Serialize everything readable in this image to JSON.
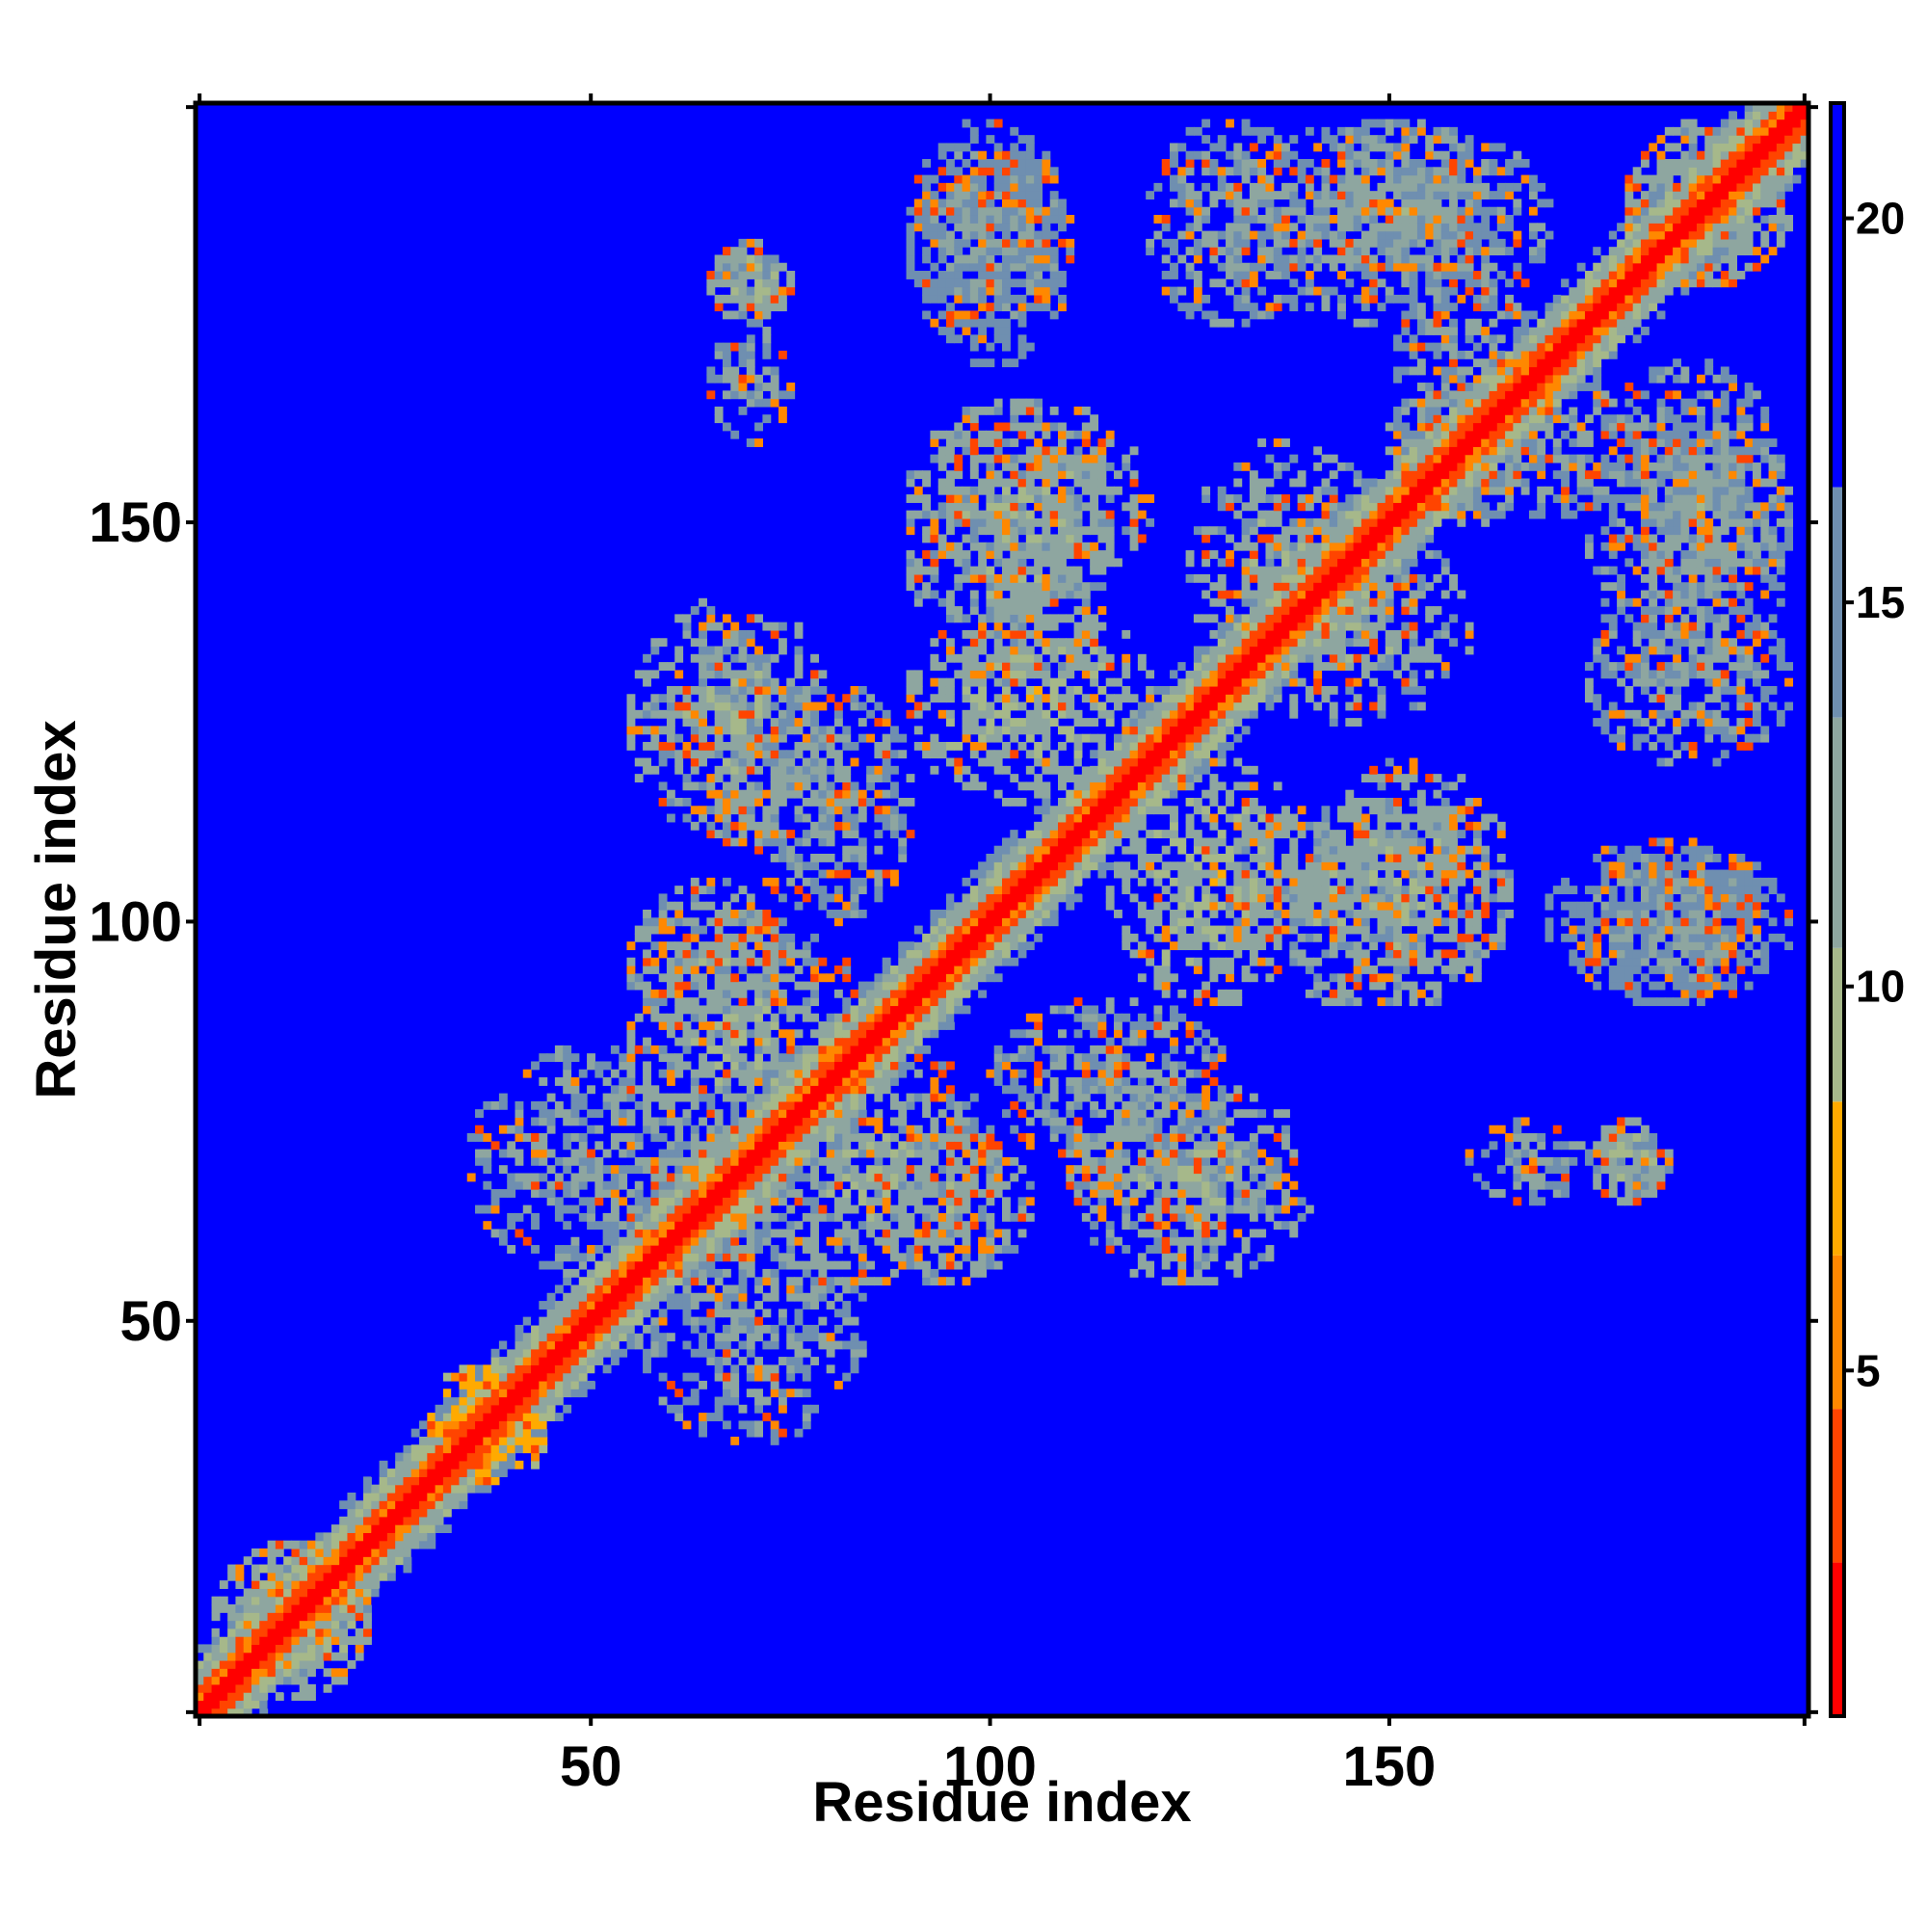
{
  "chart_data": {
    "type": "heatmap",
    "title": "",
    "xlabel": "Residue index",
    "ylabel": "Residue index",
    "x_range": [
      1,
      202
    ],
    "y_range": [
      1,
      202
    ],
    "x_ticks": [
      50,
      100,
      150
    ],
    "y_ticks": [
      50,
      100,
      150
    ],
    "colorbar": {
      "range": [
        0.5,
        21.5
      ],
      "ticks": [
        5,
        10,
        15,
        20
      ],
      "colors": [
        "#ff0000",
        "#ff4400",
        "#ff8800",
        "#ffaa00",
        "#a6b88a",
        "#8ea6a0",
        "#6f8fb0",
        "#0000ff"
      ],
      "color_breaks": [
        0.5,
        2.5,
        4.5,
        6.5,
        8.5,
        10.5,
        13.5,
        16.5,
        21.5
      ]
    },
    "background_value": 21,
    "diagonal": {
      "core_value": 1,
      "near_value": 4,
      "band_halfwidth_residues": 6
    },
    "contact_regions": [
      {
        "x": [
          3,
          22
        ],
        "y": [
          3,
          22
        ],
        "value": 10
      },
      {
        "x": [
          30,
          45
        ],
        "y": [
          30,
          45
        ],
        "value": 7
      },
      {
        "x": [
          35,
          75
        ],
        "y": [
          55,
          85
        ],
        "value": 12
      },
      {
        "x": [
          55,
          85
        ],
        "y": [
          70,
          100
        ],
        "value": 11
      },
      {
        "x": [
          60,
          75
        ],
        "y": [
          110,
          135
        ],
        "value": 12
      },
      {
        "x": [
          70,
          90
        ],
        "y": [
          100,
          130
        ],
        "value": 12
      },
      {
        "x": [
          85,
          105
        ],
        "y": [
          55,
          75
        ],
        "value": 11
      },
      {
        "x": [
          90,
          115
        ],
        "y": [
          130,
          165
        ],
        "value": 11
      },
      {
        "x": [
          110,
          140
        ],
        "y": [
          55,
          80
        ],
        "value": 11
      },
      {
        "x": [
          115,
          140
        ],
        "y": [
          90,
          120
        ],
        "value": 10
      },
      {
        "x": [
          130,
          160
        ],
        "y": [
          125,
          150
        ],
        "value": 11
      },
      {
        "x": [
          140,
          165
        ],
        "y": [
          90,
          120
        ],
        "value": 11
      },
      {
        "x": [
          150,
          170
        ],
        "y": [
          150,
          180
        ],
        "value": 12
      },
      {
        "x": [
          160,
          175
        ],
        "y": [
          65,
          75
        ],
        "value": 12
      },
      {
        "x": [
          175,
          185
        ],
        "y": [
          65,
          75
        ],
        "value": 10
      },
      {
        "x": [
          175,
          200
        ],
        "y": [
          130,
          170
        ],
        "value": 12
      },
      {
        "x": [
          175,
          195
        ],
        "y": [
          90,
          110
        ],
        "value": 13
      },
      {
        "x": [
          65,
          75
        ],
        "y": [
          175,
          185
        ],
        "value": 12
      },
      {
        "x": [
          90,
          110
        ],
        "y": [
          170,
          200
        ],
        "value": 13
      },
      {
        "x": [
          120,
          140
        ],
        "y": [
          175,
          200
        ],
        "value": 12
      },
      {
        "x": [
          140,
          165
        ],
        "y": [
          180,
          200
        ],
        "value": 12
      },
      {
        "x": [
          180,
          200
        ],
        "y": [
          180,
          200
        ],
        "value": 11
      }
    ]
  }
}
